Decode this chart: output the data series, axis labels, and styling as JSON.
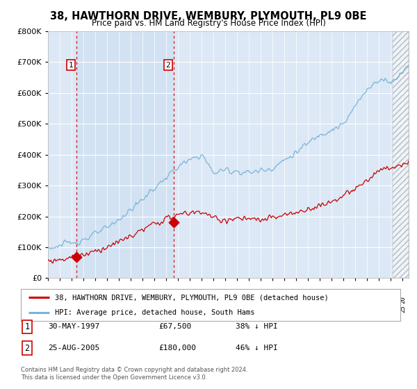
{
  "title": "38, HAWTHORN DRIVE, WEMBURY, PLYMOUTH, PL9 0BE",
  "subtitle": "Price paid vs. HM Land Registry's House Price Index (HPI)",
  "hpi_color": "#7ab4d8",
  "price_color": "#cc0000",
  "marker_color": "#cc0000",
  "vline_color": "#cc0000",
  "background_color": "#dce8f5",
  "shade_color": "#ccdff0",
  "legend_label_price": "38, HAWTHORN DRIVE, WEMBURY, PLYMOUTH, PL9 0BE (detached house)",
  "legend_label_hpi": "HPI: Average price, detached house, South Hams",
  "transaction1_date": "30-MAY-1997",
  "transaction1_price": "£67,500",
  "transaction1_hpi": "38% ↓ HPI",
  "transaction1_year": 1997.42,
  "transaction1_value": 67500,
  "transaction2_date": "25-AUG-2005",
  "transaction2_price": "£180,000",
  "transaction2_hpi": "46% ↓ HPI",
  "transaction2_year": 2005.65,
  "transaction2_value": 180000,
  "footer": "Contains HM Land Registry data © Crown copyright and database right 2024.\nThis data is licensed under the Open Government Licence v3.0.",
  "ylim": [
    0,
    800000
  ],
  "xlim_start": 1995.0,
  "xlim_end": 2025.5
}
